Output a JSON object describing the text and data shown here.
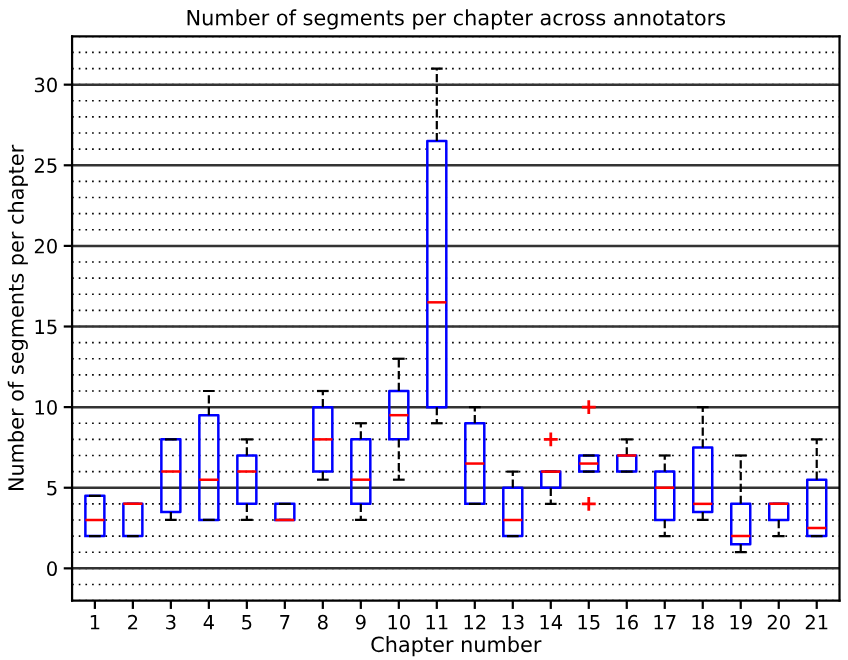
{
  "chart_data": {
    "type": "box",
    "title": "Number of segments per chapter across annotators",
    "xlabel": "Chapter number",
    "ylabel": "Number of segments per chapter",
    "categories": [
      "1",
      "2",
      "3",
      "4",
      "5",
      "7",
      "8",
      "9",
      "10",
      "11",
      "12",
      "13",
      "14",
      "15",
      "16",
      "17",
      "18",
      "19",
      "20",
      "21"
    ],
    "boxes": [
      {
        "low": 2,
        "q1": 2,
        "median": 3,
        "q3": 4.5,
        "high": 4.5
      },
      {
        "low": 2,
        "q1": 2,
        "median": 4,
        "q3": 4,
        "high": 4
      },
      {
        "low": 3,
        "q1": 3.5,
        "median": 6,
        "q3": 8,
        "high": 8
      },
      {
        "low": 3,
        "q1": 3,
        "median": 5.5,
        "q3": 9.5,
        "high": 11
      },
      {
        "low": 3,
        "q1": 4,
        "median": 6,
        "q3": 7,
        "high": 8
      },
      {
        "low": 3,
        "q1": 3,
        "median": 3,
        "q3": 4,
        "high": 4
      },
      {
        "low": 5.5,
        "q1": 6,
        "median": 8,
        "q3": 10,
        "high": 11
      },
      {
        "low": 3,
        "q1": 4,
        "median": 5.5,
        "q3": 8,
        "high": 9
      },
      {
        "low": 5.5,
        "q1": 8,
        "median": 9.5,
        "q3": 11,
        "high": 13
      },
      {
        "low": 9,
        "q1": 10,
        "median": 16.5,
        "q3": 26.5,
        "high": 31
      },
      {
        "low": 4,
        "q1": 4,
        "median": 6.5,
        "q3": 9,
        "high": 10
      },
      {
        "low": 2,
        "q1": 2,
        "median": 3,
        "q3": 5,
        "high": 6
      },
      {
        "low": 4,
        "q1": 5,
        "median": 6,
        "q3": 6,
        "high": 6,
        "outliers": [
          8
        ]
      },
      {
        "low": 6,
        "q1": 6,
        "median": 6.5,
        "q3": 7,
        "high": 7,
        "outliers": [
          10,
          4
        ]
      },
      {
        "low": 6,
        "q1": 6,
        "median": 7,
        "q3": 7,
        "high": 8
      },
      {
        "low": 2,
        "q1": 3,
        "median": 5,
        "q3": 6,
        "high": 7
      },
      {
        "low": 3,
        "q1": 3.5,
        "median": 4,
        "q3": 7.5,
        "high": 10
      },
      {
        "low": 1,
        "q1": 1.5,
        "median": 2,
        "q3": 4,
        "high": 7
      },
      {
        "low": 2,
        "q1": 3,
        "median": 4,
        "q3": 4,
        "high": 4
      },
      {
        "low": 2,
        "q1": 2,
        "median": 2.5,
        "q3": 5.5,
        "high": 8
      }
    ],
    "color": "#0000ff",
    "ylim": [
      -2,
      33
    ],
    "yticks": [
      0,
      5,
      10,
      15,
      20,
      25,
      30
    ],
    "grid": true
  }
}
